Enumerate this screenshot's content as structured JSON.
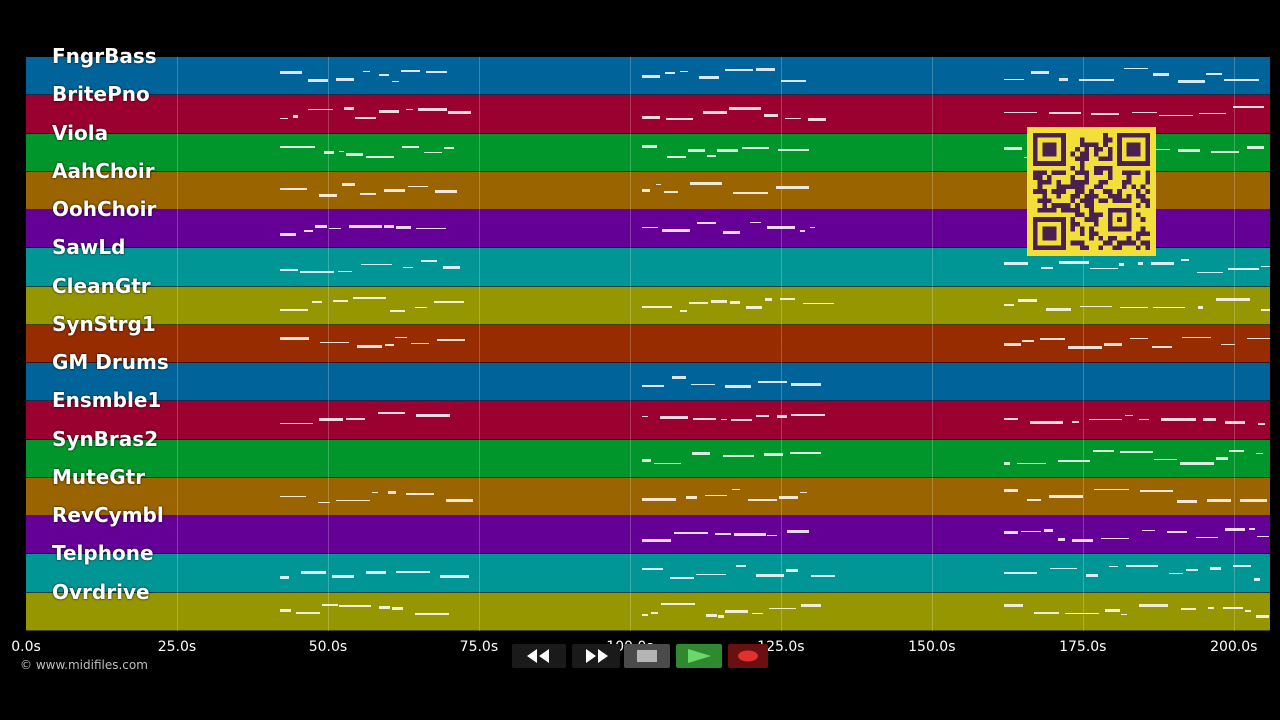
{
  "copyright": "© www.midifiles.com",
  "timeline": {
    "duration_s": 206,
    "ticks": [
      "0.0s",
      "25.0s",
      "50.0s",
      "75.0s",
      "100.0s",
      "125.0s",
      "150.0s",
      "175.0s",
      "200.0s"
    ],
    "tick_values": [
      0,
      25,
      50,
      75,
      100,
      125,
      150,
      175,
      200
    ]
  },
  "tracks": [
    {
      "name": "FngrBass",
      "color": "#00649a"
    },
    {
      "name": "BritePno",
      "color": "#9a0030"
    },
    {
      "name": "Viola",
      "color": "#00962c"
    },
    {
      "name": "AahChoir",
      "color": "#9a6400"
    },
    {
      "name": "OohChoir",
      "color": "#650096"
    },
    {
      "name": "SawLd",
      "color": "#009696"
    },
    {
      "name": "CleanGtr",
      "color": "#969600"
    },
    {
      "name": "SynStrg1",
      "color": "#962c00"
    },
    {
      "name": "GM Drums",
      "color": "#00649a"
    },
    {
      "name": "Ensmble1",
      "color": "#9a0030"
    },
    {
      "name": "SynBras2",
      "color": "#00962c"
    },
    {
      "name": "MuteGtr",
      "color": "#9a6400"
    },
    {
      "name": "RevCymbl",
      "color": "#650096"
    },
    {
      "name": "Telphone",
      "color": "#009696"
    },
    {
      "name": "Ovrdrive",
      "color": "#969600"
    }
  ],
  "transport": {
    "buttons": [
      {
        "id": "rewind",
        "icon": "rewind-icon"
      },
      {
        "id": "fast-forward",
        "icon": "fast-forward-icon"
      },
      {
        "id": "stop",
        "icon": "stop-icon"
      },
      {
        "id": "play",
        "icon": "play-icon"
      },
      {
        "id": "record",
        "icon": "record-icon"
      }
    ],
    "colors": {
      "stop": "#4a4a4a",
      "play": "#2f8a2f",
      "record": "#6a1010",
      "record_dot": "#e03030"
    }
  }
}
